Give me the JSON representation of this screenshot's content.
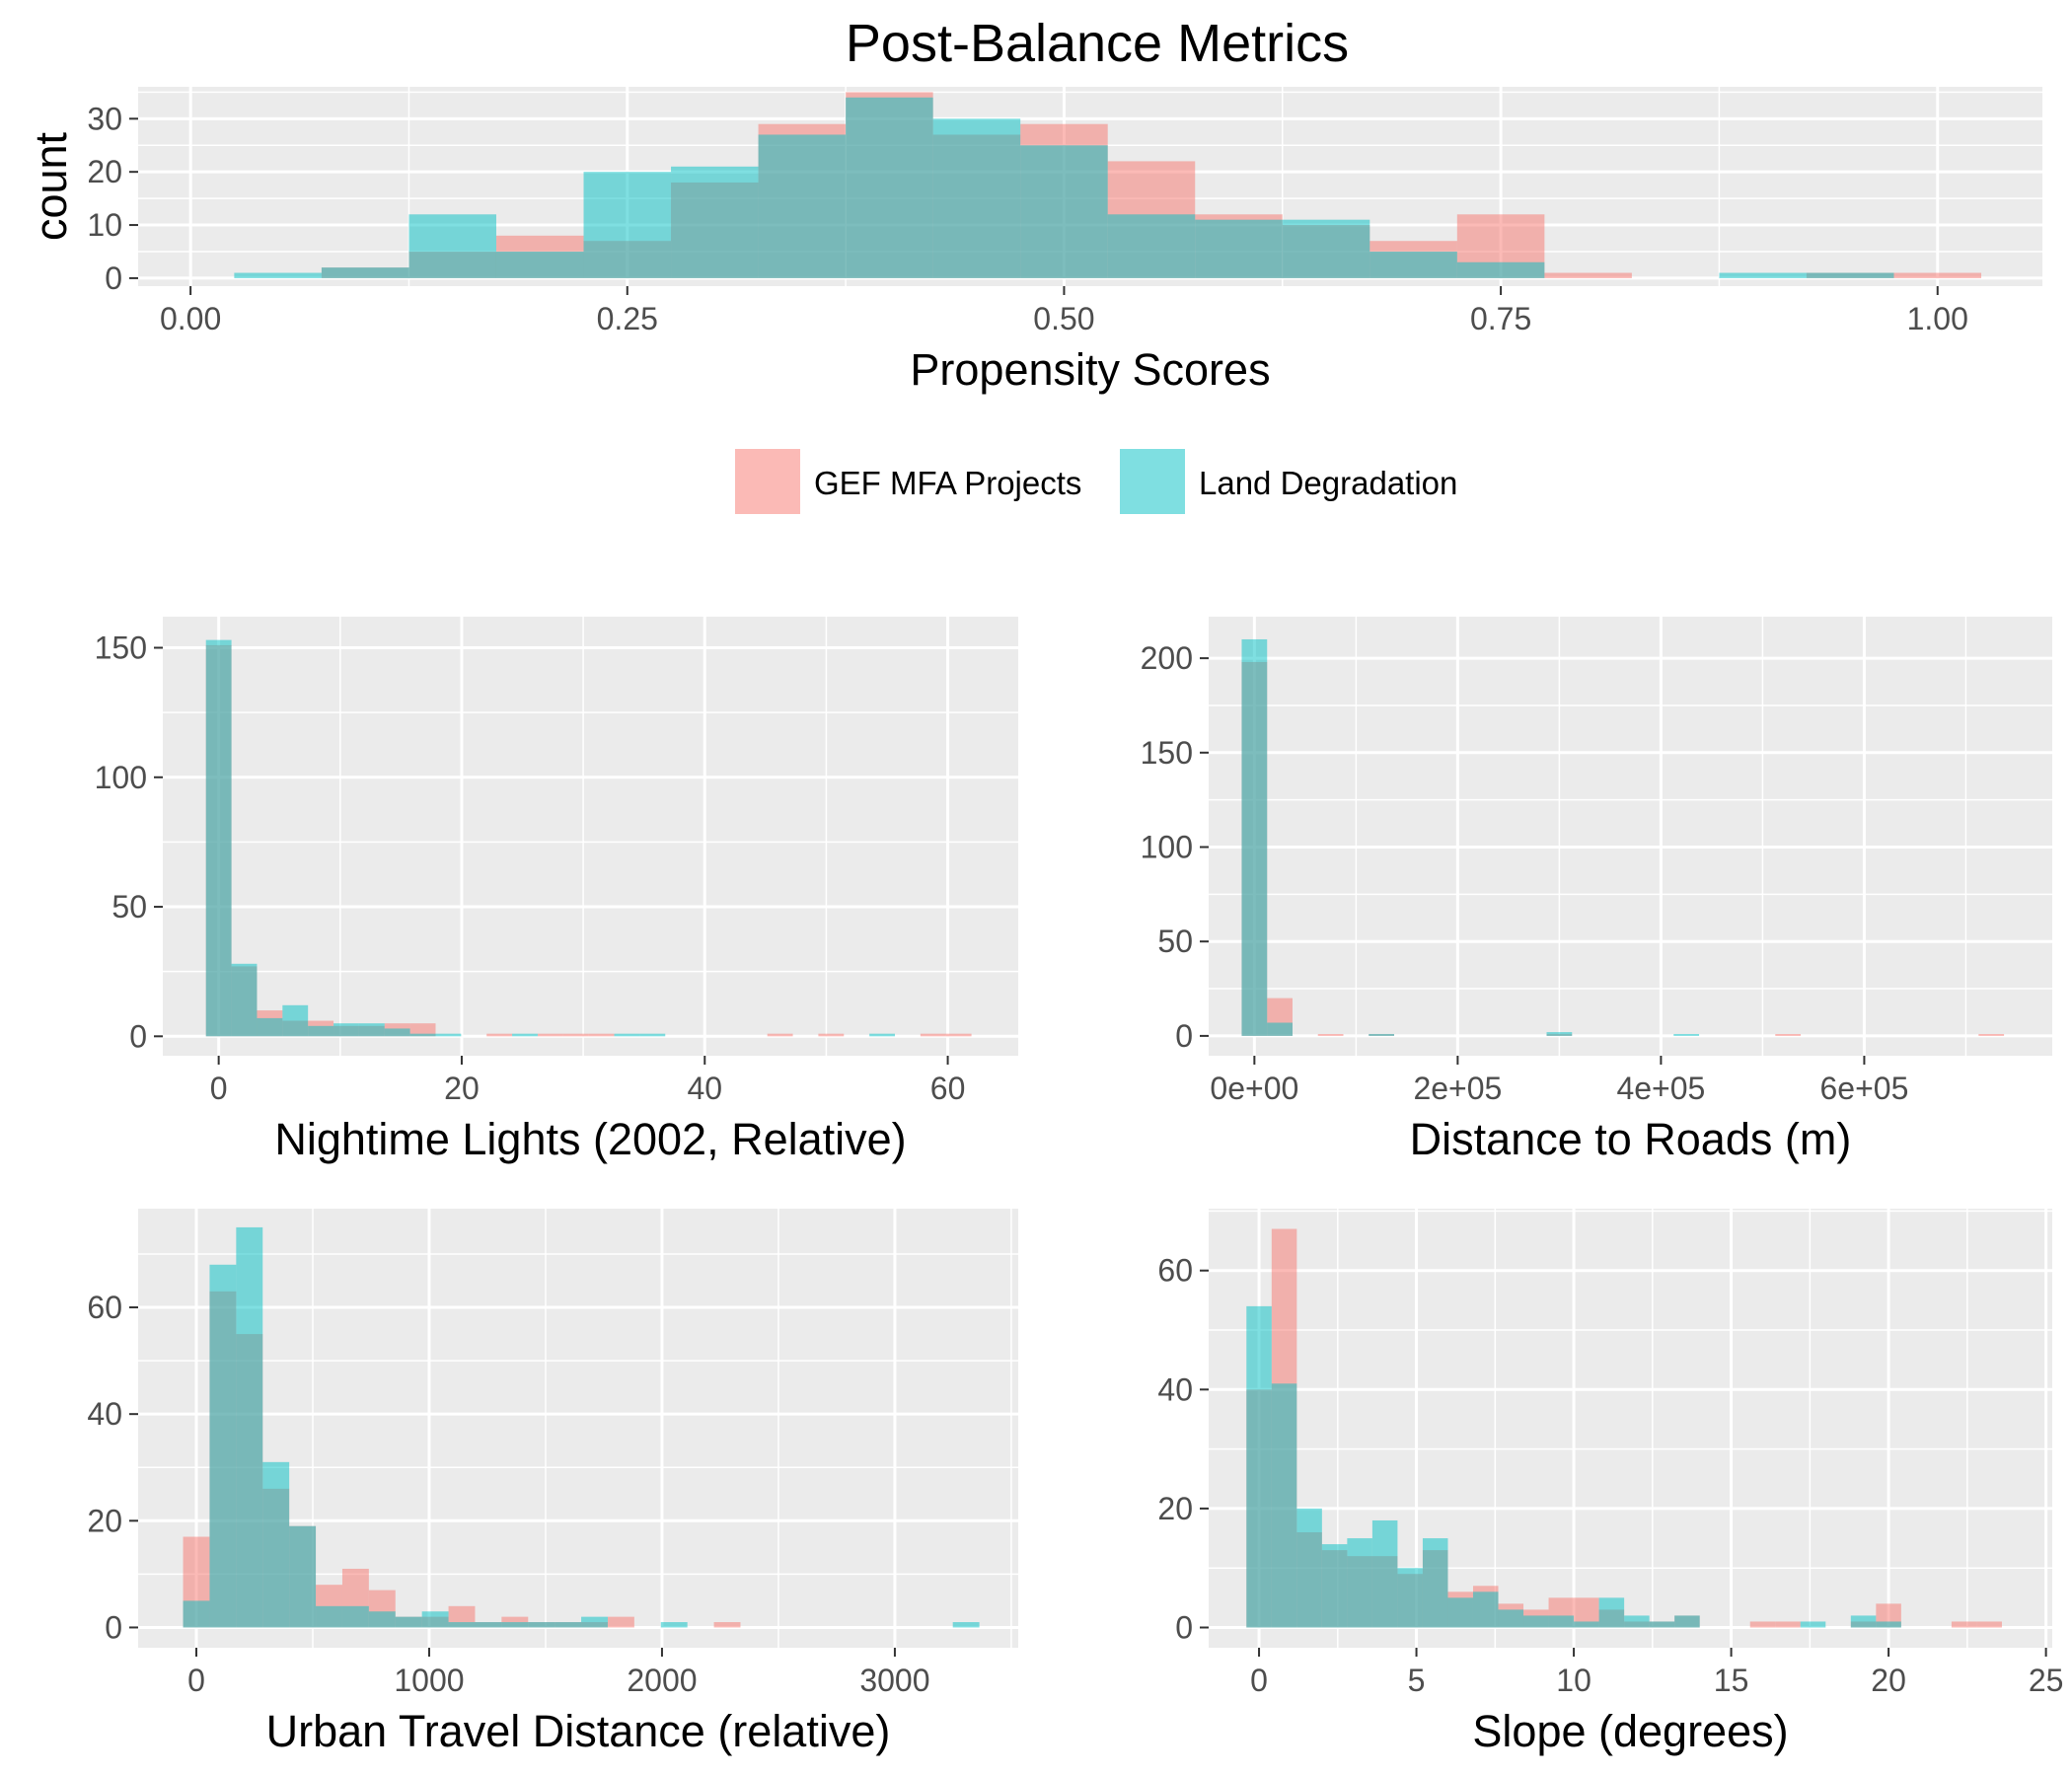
{
  "figure": {
    "title": "Post-Balance Metrics",
    "legend": [
      {
        "label": "GEF MFA Projects",
        "color": "#F8766D"
      },
      {
        "label": "Land Degradation",
        "color": "#00BFC4"
      }
    ]
  },
  "chart_data": [
    {
      "type": "histogram",
      "xlabel": "Propensity Scores",
      "ylabel": "count",
      "xlim": [
        -0.03,
        1.06
      ],
      "ylim": [
        -1.5,
        36
      ],
      "xticks": [
        0,
        0.25,
        0.5,
        0.75,
        1.0
      ],
      "xtick_labels": [
        "0.00",
        "0.25",
        "0.50",
        "0.75",
        "1.00"
      ],
      "yticks": [
        0,
        10,
        20,
        30
      ],
      "ytick_labels": [
        "0",
        "10",
        "20",
        "30"
      ],
      "bin_starts": [
        0.025,
        0.075,
        0.125,
        0.175,
        0.225,
        0.275,
        0.325,
        0.375,
        0.425,
        0.475,
        0.525,
        0.575,
        0.625,
        0.675,
        0.725,
        0.775,
        0.825,
        0.875,
        0.925,
        0.975
      ],
      "bin_width": 0.05,
      "series": [
        {
          "name": "GEF MFA Projects",
          "values": [
            0,
            2,
            5,
            8,
            7,
            18,
            29,
            35,
            27,
            29,
            22,
            12,
            10,
            7,
            12,
            1,
            0,
            0,
            1,
            1
          ]
        },
        {
          "name": "Land Degradation",
          "values": [
            1,
            2,
            12,
            5,
            20,
            21,
            27,
            34,
            30,
            25,
            12,
            11,
            11,
            5,
            3,
            0,
            0,
            1,
            1,
            0
          ]
        }
      ]
    },
    {
      "type": "histogram",
      "xlabel": "Nightime Lights (2002, Relative)",
      "ylabel": "",
      "xlim": [
        -4.6,
        65.8
      ],
      "ylim": [
        -7.5,
        162
      ],
      "xticks": [
        0,
        20,
        40,
        60
      ],
      "xtick_labels": [
        "0",
        "20",
        "40",
        "60"
      ],
      "yticks": [
        0,
        50,
        100,
        150
      ],
      "ytick_labels": [
        "0",
        "50",
        "100",
        "150"
      ],
      "bin_starts": [
        -1.05,
        1.05,
        3.15,
        5.25,
        7.35,
        9.45,
        11.55,
        13.65,
        15.75,
        17.85,
        19.95,
        22.05,
        24.15,
        26.25,
        28.35,
        30.45,
        32.55,
        34.65,
        36.75,
        38.85,
        40.95,
        43.05,
        45.15,
        47.25,
        49.35,
        51.45,
        53.55,
        55.65,
        57.75,
        59.85
      ],
      "bin_width": 2.1,
      "series": [
        {
          "name": "GEF MFA Projects",
          "values": [
            151,
            27,
            10,
            6,
            6,
            4,
            4,
            5,
            5,
            0,
            0,
            1,
            0,
            1,
            1,
            1,
            0,
            0,
            0,
            0,
            0,
            0,
            1,
            0,
            1,
            0,
            0,
            0,
            1,
            1
          ]
        },
        {
          "name": "Land Degradation",
          "values": [
            153,
            28,
            7,
            12,
            4,
            5,
            5,
            3,
            1,
            1,
            0,
            0,
            1,
            0,
            0,
            0,
            1,
            1,
            0,
            0,
            0,
            0,
            0,
            0,
            0,
            0,
            1,
            0,
            0,
            0
          ]
        }
      ]
    },
    {
      "type": "histogram",
      "xlabel": "Distance to Roads (m)",
      "ylabel": "",
      "xlim": [
        -45000,
        785000
      ],
      "ylim": [
        -10.5,
        222
      ],
      "xticks": [
        0,
        200000,
        400000,
        600000
      ],
      "xtick_labels": [
        "0e+00",
        "2e+05",
        "4e+05",
        "6e+05"
      ],
      "yticks": [
        0,
        50,
        100,
        150,
        200
      ],
      "ytick_labels": [
        "0",
        "50",
        "100",
        "150",
        "200"
      ],
      "bin_starts": [
        -12500,
        12500,
        37500,
        62500,
        87500,
        112500,
        137500,
        162500,
        187500,
        212500,
        237500,
        262500,
        287500,
        312500,
        337500,
        362500,
        387500,
        412500,
        437500,
        462500,
        487500,
        512500,
        537500,
        562500,
        587500,
        612500,
        637500,
        662500,
        687500,
        712500
      ],
      "bin_width": 25000,
      "series": [
        {
          "name": "GEF MFA Projects",
          "values": [
            198,
            20,
            0,
            1,
            0,
            1,
            0,
            0,
            0,
            0,
            0,
            0,
            1,
            0,
            0,
            0,
            0,
            0,
            0,
            0,
            0,
            1,
            0,
            0,
            0,
            0,
            0,
            0,
            0,
            1
          ]
        },
        {
          "name": "Land Degradation",
          "values": [
            210,
            7,
            0,
            0,
            0,
            1,
            0,
            0,
            0,
            0,
            0,
            0,
            2,
            0,
            0,
            0,
            0,
            1,
            0,
            0,
            0,
            0,
            0,
            0,
            0,
            0,
            0,
            0,
            0,
            0
          ]
        }
      ]
    },
    {
      "type": "histogram",
      "xlabel": "Urban Travel Distance (relative)",
      "ylabel": "",
      "xlim": [
        -250,
        3530
      ],
      "ylim": [
        -3.8,
        78.5
      ],
      "xticks": [
        0,
        1000,
        2000,
        3000
      ],
      "xtick_labels": [
        "0",
        "1000",
        "2000",
        "3000"
      ],
      "yticks": [
        0,
        20,
        40,
        60
      ],
      "ytick_labels": [
        "0",
        "20",
        "40",
        "60"
      ],
      "bin_starts": [
        -57,
        57,
        171,
        285,
        399,
        513,
        627,
        741,
        855,
        969,
        1083,
        1197,
        1311,
        1425,
        1539,
        1653,
        1767,
        1881,
        1995,
        2109,
        2223,
        2337,
        2451,
        2565,
        2679,
        2793,
        2907,
        3021,
        3135,
        3249
      ],
      "bin_width": 114,
      "series": [
        {
          "name": "GEF MFA Projects",
          "values": [
            17,
            63,
            55,
            26,
            19,
            8,
            11,
            7,
            2,
            2,
            4,
            1,
            2,
            1,
            1,
            1,
            2,
            0,
            0,
            0,
            1,
            0,
            0,
            0,
            0,
            0,
            0,
            0,
            0,
            0
          ]
        },
        {
          "name": "Land Degradation",
          "values": [
            5,
            68,
            75,
            31,
            19,
            4,
            4,
            3,
            2,
            3,
            1,
            1,
            1,
            1,
            1,
            2,
            0,
            0,
            1,
            0,
            0,
            0,
            0,
            0,
            0,
            0,
            0,
            0,
            0,
            1
          ]
        }
      ]
    },
    {
      "type": "histogram",
      "xlabel": "Slope (degrees)",
      "ylabel": "",
      "xlim": [
        -1.6,
        25.2
      ],
      "ylim": [
        -3.4,
        70.4
      ],
      "xticks": [
        0,
        5,
        10,
        15,
        20,
        25
      ],
      "xtick_labels": [
        "0",
        "5",
        "10",
        "15",
        "20",
        "25"
      ],
      "yticks": [
        0,
        20,
        40,
        60
      ],
      "ytick_labels": [
        "0",
        "20",
        "40",
        "60"
      ],
      "bin_starts": [
        -0.4,
        0.4,
        1.2,
        2.0,
        2.8,
        3.6,
        4.4,
        5.2,
        6.0,
        6.8,
        7.6,
        8.4,
        9.2,
        10.0,
        10.8,
        11.6,
        12.4,
        13.2,
        14.0,
        14.8,
        15.6,
        16.4,
        17.2,
        18.0,
        18.8,
        19.6,
        20.4,
        21.2,
        22.0,
        22.8
      ],
      "bin_width": 0.8,
      "series": [
        {
          "name": "GEF MFA Projects",
          "values": [
            40,
            67,
            16,
            13,
            12,
            12,
            9,
            13,
            6,
            7,
            4,
            3,
            5,
            5,
            3,
            1,
            1,
            2,
            0,
            0,
            1,
            1,
            0,
            0,
            1,
            4,
            0,
            0,
            1,
            1
          ]
        },
        {
          "name": "Land Degradation",
          "values": [
            54,
            41,
            20,
            14,
            15,
            18,
            10,
            15,
            5,
            6,
            3,
            2,
            2,
            1,
            5,
            2,
            1,
            2,
            0,
            0,
            0,
            0,
            1,
            0,
            2,
            1,
            0,
            0,
            0,
            0
          ]
        }
      ]
    }
  ]
}
